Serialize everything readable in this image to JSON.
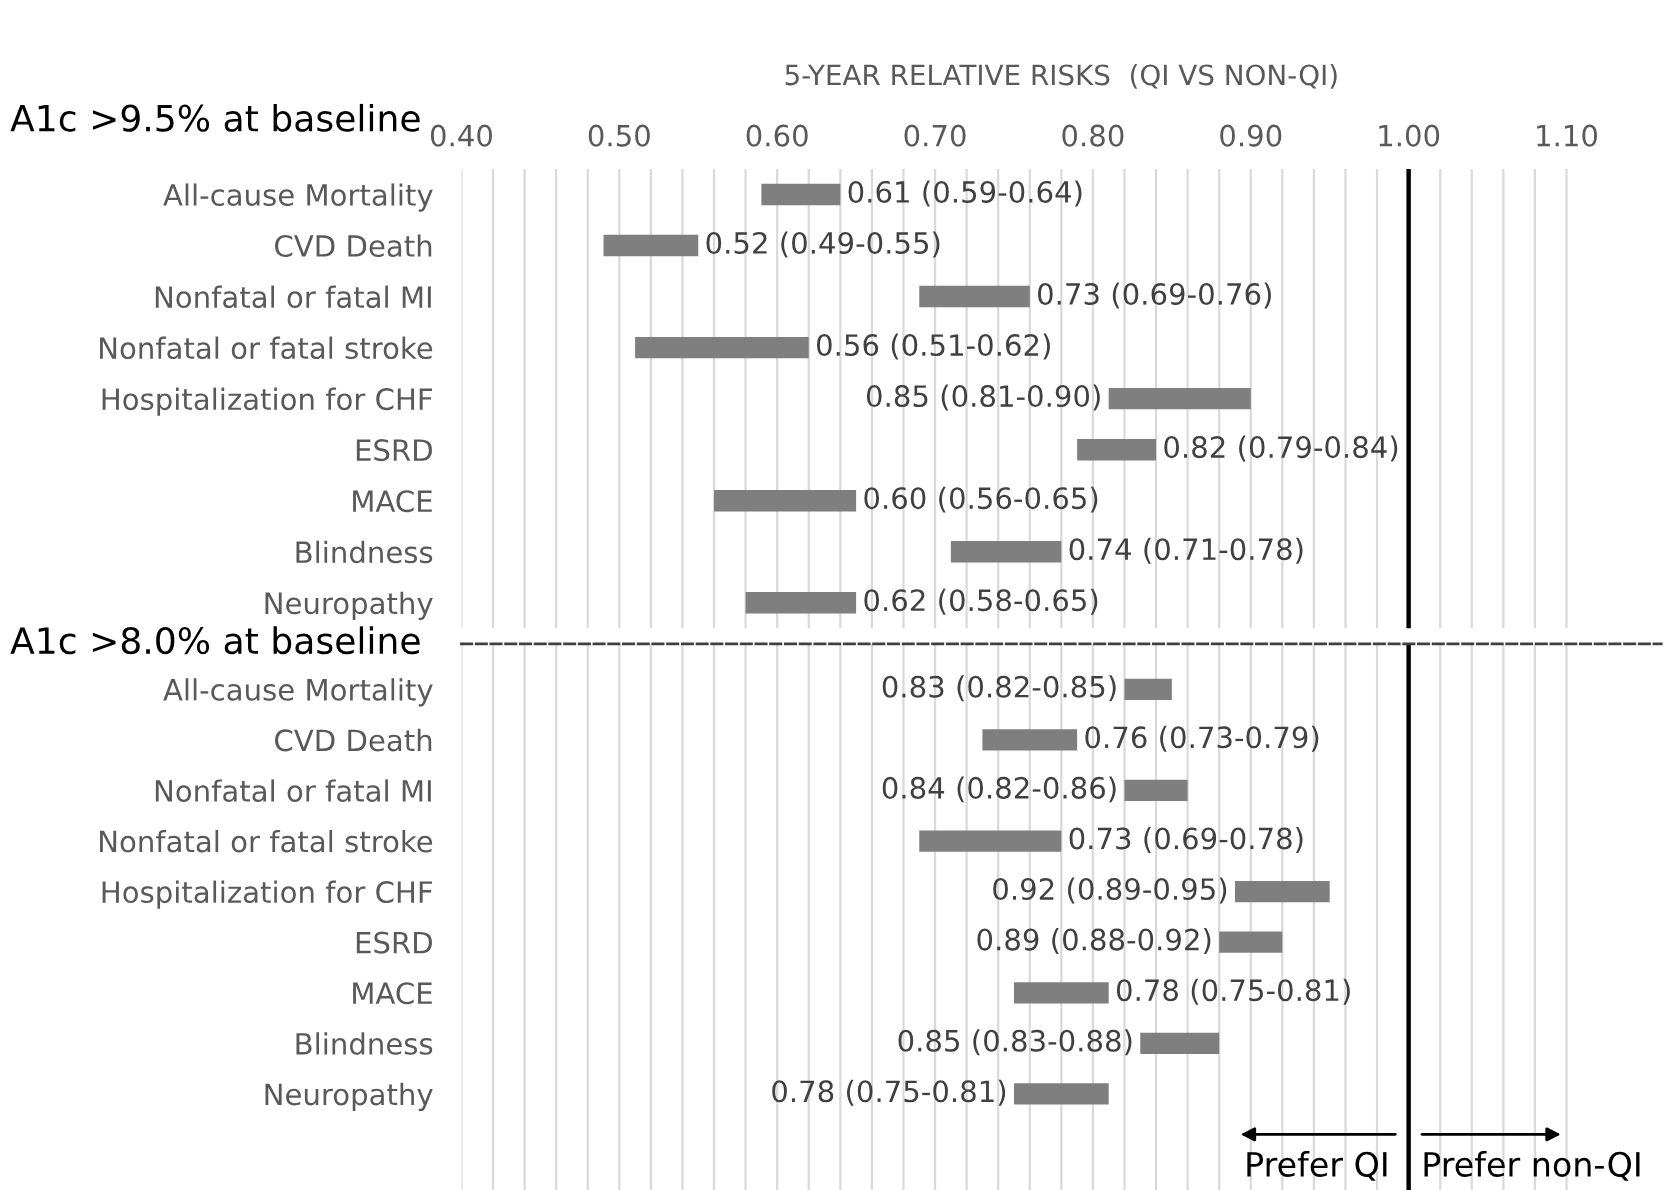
{
  "chart_data": [
    {
      "type": "bar",
      "orientation": "horizontal",
      "title": "5-YEAR RELATIVE RISKS  (QI VS NON-QI)",
      "subtitle": "A1c >9.5% at baseline",
      "categories": [
        "All-cause Mortality",
        "CVD Death",
        "Nonfatal or fatal MI",
        "Nonfatal or fatal stroke",
        "Hospitalization for CHF",
        "ESRD",
        "MACE",
        "Blindness",
        "Neuropathy"
      ],
      "base": [
        0.59,
        0.49,
        0.69,
        0.51,
        0.81,
        0.79,
        0.56,
        0.71,
        0.58
      ],
      "values": [
        0.05,
        0.06,
        0.07,
        0.11,
        0.09,
        0.05,
        0.09,
        0.07,
        0.07
      ],
      "color": "#7f7f7f",
      "xlim": [
        0.4,
        1.16
      ],
      "xticks": [
        {
          "value": 0.4,
          "label": "0.40"
        },
        {
          "value": 0.42,
          "label": null
        },
        {
          "value": 0.44,
          "label": null
        },
        {
          "value": 0.46,
          "label": null
        },
        {
          "value": 0.48,
          "label": null
        },
        {
          "value": 0.5,
          "label": "0.50"
        },
        {
          "value": 0.52,
          "label": null
        },
        {
          "value": 0.54,
          "label": null
        },
        {
          "value": 0.56,
          "label": null
        },
        {
          "value": 0.58,
          "label": null
        },
        {
          "value": 0.6,
          "label": "0.60"
        },
        {
          "value": 0.62,
          "label": null
        },
        {
          "value": 0.64,
          "label": null
        },
        {
          "value": 0.66,
          "label": null
        },
        {
          "value": 0.68,
          "label": null
        },
        {
          "value": 0.7,
          "label": "0.70"
        },
        {
          "value": 0.72,
          "label": null
        },
        {
          "value": 0.74,
          "label": null
        },
        {
          "value": 0.76,
          "label": null
        },
        {
          "value": 0.78,
          "label": null
        },
        {
          "value": 0.8,
          "label": "0.80"
        },
        {
          "value": 0.82,
          "label": null
        },
        {
          "value": 0.84,
          "label": null
        },
        {
          "value": 0.86,
          "label": null
        },
        {
          "value": 0.88,
          "label": null
        },
        {
          "value": 0.9,
          "label": "0.90"
        },
        {
          "value": 0.92,
          "label": null
        },
        {
          "value": 0.94,
          "label": null
        },
        {
          "value": 0.96,
          "label": null
        },
        {
          "value": 0.98,
          "label": null
        },
        {
          "value": 1.0,
          "label": "1.00"
        },
        {
          "value": 1.02,
          "label": null
        },
        {
          "value": 1.04,
          "label": null
        },
        {
          "value": 1.06,
          "label": null
        },
        {
          "value": 1.08,
          "label": null
        },
        {
          "value": 1.1,
          "label": "1.10"
        }
      ],
      "grid": "x",
      "ref_lines": [
        {
          "axis": "x",
          "value": 1.0,
          "label": null,
          "color": "#000000",
          "line_style": "solid"
        }
      ],
      "annotations": [
        {
          "text": "0.61 (0.59-0.64)",
          "x": 0.64,
          "y": "All-cause Mortality"
        },
        {
          "text": "0.52 (0.49-0.55)",
          "x": 0.55,
          "y": "CVD Death"
        },
        {
          "text": "0.73 (0.69-0.76)",
          "x": 0.76,
          "y": "Nonfatal or fatal MI"
        },
        {
          "text": "0.56 (0.51-0.62)",
          "x": 0.62,
          "y": "Nonfatal or fatal stroke"
        },
        {
          "text": "0.85 (0.81-0.90)",
          "x": 0.81,
          "y": "Hospitalization for CHF"
        },
        {
          "text": "0.82 (0.79-0.84)",
          "x": 0.84,
          "y": "ESRD"
        },
        {
          "text": "0.60 (0.56-0.65)",
          "x": 0.65,
          "y": "MACE"
        },
        {
          "text": "0.74 (0.71-0.78)",
          "x": 0.78,
          "y": "Blindness"
        },
        {
          "text": "0.62 (0.58-0.65)",
          "x": 0.65,
          "y": "Neuropathy"
        }
      ]
    },
    {
      "type": "bar",
      "orientation": "horizontal",
      "subtitle": "A1c >8.0% at baseline",
      "categories": [
        "All-cause Mortality",
        "CVD Death",
        "Nonfatal or fatal MI",
        "Nonfatal or fatal stroke",
        "Hospitalization for CHF",
        "ESRD",
        "MACE",
        "Blindness",
        "Neuropathy"
      ],
      "base": [
        0.82,
        0.73,
        0.82,
        0.69,
        0.89,
        0.88,
        0.75,
        0.83,
        0.75
      ],
      "values": [
        0.03,
        0.06,
        0.04,
        0.09,
        0.06,
        0.04,
        0.06,
        0.05,
        0.06
      ],
      "color": "#7f7f7f",
      "xlim": [
        0.4,
        1.16
      ],
      "xticks": [
        {
          "value": 0.4,
          "label": null
        },
        {
          "value": 0.42,
          "label": null
        },
        {
          "value": 0.44,
          "label": null
        },
        {
          "value": 0.46,
          "label": null
        },
        {
          "value": 0.48,
          "label": null
        },
        {
          "value": 0.5,
          "label": null
        },
        {
          "value": 0.52,
          "label": null
        },
        {
          "value": 0.54,
          "label": null
        },
        {
          "value": 0.56,
          "label": null
        },
        {
          "value": 0.58,
          "label": null
        },
        {
          "value": 0.6,
          "label": null
        },
        {
          "value": 0.62,
          "label": null
        },
        {
          "value": 0.64,
          "label": null
        },
        {
          "value": 0.66,
          "label": null
        },
        {
          "value": 0.68,
          "label": null
        },
        {
          "value": 0.7,
          "label": null
        },
        {
          "value": 0.72,
          "label": null
        },
        {
          "value": 0.74,
          "label": null
        },
        {
          "value": 0.76,
          "label": null
        },
        {
          "value": 0.78,
          "label": null
        },
        {
          "value": 0.8,
          "label": null
        },
        {
          "value": 0.82,
          "label": null
        },
        {
          "value": 0.84,
          "label": null
        },
        {
          "value": 0.86,
          "label": null
        },
        {
          "value": 0.88,
          "label": null
        },
        {
          "value": 0.9,
          "label": null
        },
        {
          "value": 0.92,
          "label": null
        },
        {
          "value": 0.94,
          "label": null
        },
        {
          "value": 0.96,
          "label": null
        },
        {
          "value": 0.98,
          "label": null
        },
        {
          "value": 1.0,
          "label": null
        },
        {
          "value": 1.02,
          "label": null
        },
        {
          "value": 1.04,
          "label": null
        },
        {
          "value": 1.06,
          "label": null
        },
        {
          "value": 1.08,
          "label": null
        },
        {
          "value": 1.1,
          "label": null
        }
      ],
      "tick_labels": "y",
      "grid": "x",
      "ref_lines": [
        {
          "axis": "x",
          "value": 1.0,
          "label": null,
          "color": "#000000",
          "line_style": "solid"
        }
      ],
      "annotations": [
        {
          "text": "0.83 (0.82-0.85)",
          "x": 0.82,
          "y": "All-cause Mortality"
        },
        {
          "text": "0.76 (0.73-0.79)",
          "x": 0.79,
          "y": "CVD Death"
        },
        {
          "text": "0.84 (0.82-0.86)",
          "x": 0.82,
          "y": "Nonfatal or fatal MI"
        },
        {
          "text": "0.73 (0.69-0.78)",
          "x": 0.78,
          "y": "Nonfatal or fatal stroke"
        },
        {
          "text": "0.92 (0.89-0.95)",
          "x": 0.89,
          "y": "Hospitalization for CHF"
        },
        {
          "text": "0.89 (0.88-0.92)",
          "x": 0.88,
          "y": "ESRD"
        },
        {
          "text": "0.78 (0.75-0.81)",
          "x": 0.81,
          "y": "MACE"
        },
        {
          "text": "0.85 (0.83-0.88)",
          "x": 0.83,
          "y": "Blindness"
        },
        {
          "text": "0.78 (0.75-0.81)",
          "x": 0.75,
          "y": "Neuropathy"
        },
        "Prefer QI",
        "Prefer non-QI"
      ]
    }
  ]
}
